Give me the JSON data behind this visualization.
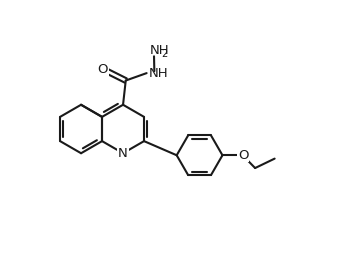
{
  "bg_color": "#ffffff",
  "line_color": "#1a1a1a",
  "line_width": 1.5,
  "font_size": 9.5,
  "sub_font_size": 7.0,
  "fig_width": 3.54,
  "fig_height": 2.58,
  "dpi": 100,
  "xlim": [
    0,
    10
  ],
  "ylim": [
    0,
    7.5
  ]
}
